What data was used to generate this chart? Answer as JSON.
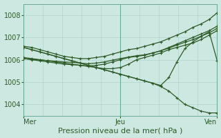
{
  "background_color": "#cce8e0",
  "plot_bg_color": "#cce8e0",
  "grid_color": "#aacfc7",
  "line_color": "#2d5a27",
  "xlabel": "Pression niveau de la mer( hPa )",
  "xtick_labels": [
    "Mer",
    "Jeu",
    "Ven"
  ],
  "xtick_positions": [
    0.0,
    0.5,
    1.0
  ],
  "ylim": [
    1003.5,
    1008.5
  ],
  "yticks": [
    1004,
    1005,
    1006,
    1007,
    1008
  ],
  "series": [
    [
      1006.55,
      1006.45,
      1006.35,
      1006.25,
      1006.15,
      1006.05,
      1005.95,
      1005.85,
      1005.75,
      1005.65,
      1005.55,
      1005.45,
      1005.35,
      1005.25,
      1005.15,
      1005.05,
      1004.95,
      1004.85,
      1005.2,
      1005.9,
      1006.5,
      1006.8,
      1007.05,
      1007.25,
      1005.95
    ],
    [
      1006.55,
      1006.45,
      1006.35,
      1006.25,
      1006.15,
      1006.05,
      1005.95,
      1005.85,
      1005.75,
      1005.65,
      1005.55,
      1005.45,
      1005.35,
      1005.25,
      1005.15,
      1005.05,
      1004.95,
      1004.8,
      1004.6,
      1004.3,
      1004.0,
      1003.85,
      1003.7,
      1003.62,
      1003.62
    ],
    [
      1006.1,
      1006.05,
      1006.0,
      1005.95,
      1005.9,
      1005.85,
      1005.8,
      1005.75,
      1005.7,
      1005.65,
      1005.6,
      1005.6,
      1005.65,
      1005.8,
      1006.0,
      1006.1,
      1006.2,
      1006.3,
      1006.45,
      1006.55,
      1006.65,
      1006.75,
      1006.9,
      1007.1,
      1007.3
    ],
    [
      1006.05,
      1006.0,
      1005.95,
      1005.9,
      1005.85,
      1005.8,
      1005.78,
      1005.75,
      1005.72,
      1005.75,
      1005.8,
      1005.9,
      1006.0,
      1006.1,
      1006.15,
      1006.2,
      1006.3,
      1006.4,
      1006.55,
      1006.7,
      1006.85,
      1007.0,
      1007.15,
      1007.3,
      1007.5
    ],
    [
      1006.05,
      1006.02,
      1005.99,
      1005.96,
      1005.93,
      1005.9,
      1005.88,
      1005.85,
      1005.82,
      1005.85,
      1005.9,
      1005.98,
      1006.05,
      1006.12,
      1006.18,
      1006.22,
      1006.3,
      1006.4,
      1006.52,
      1006.65,
      1006.78,
      1006.9,
      1007.05,
      1007.2,
      1007.4
    ],
    [
      1006.6,
      1006.55,
      1006.45,
      1006.35,
      1006.25,
      1006.15,
      1006.1,
      1006.05,
      1006.05,
      1006.1,
      1006.15,
      1006.25,
      1006.35,
      1006.45,
      1006.5,
      1006.6,
      1006.7,
      1006.8,
      1006.95,
      1007.1,
      1007.25,
      1007.45,
      1007.6,
      1007.8,
      1008.1
    ]
  ],
  "n_points": 25,
  "vlines": [
    0.0,
    0.5,
    1.0
  ],
  "fontsize_label": 8,
  "fontsize_tick": 7,
  "grid_nx": 10,
  "grid_ny": 5
}
